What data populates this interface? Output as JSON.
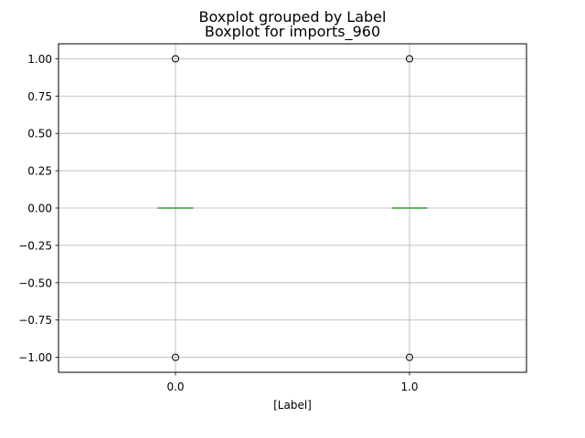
{
  "chart_data": {
    "type": "boxplot",
    "suptitle": "Boxplot grouped by Label",
    "title": "Boxplot for imports_960",
    "xlabel": "[Label]",
    "ylabel": "",
    "categories": [
      "0.0",
      "1.0"
    ],
    "ylim": [
      -1.1,
      1.1
    ],
    "yticks": [
      1.0,
      0.75,
      0.5,
      0.25,
      0.0,
      -0.25,
      -0.5,
      -0.75,
      -1.0
    ],
    "ytick_labels": [
      "1.00",
      "0.75",
      "0.50",
      "0.25",
      "0.00",
      "−0.25",
      "−0.50",
      "−0.75",
      "−1.00"
    ],
    "grid": true,
    "boxes": [
      {
        "category": "0.0",
        "q1": 0.0,
        "median": 0.0,
        "q3": 0.0,
        "whisker_low": 0.0,
        "whisker_high": 0.0,
        "outliers": [
          1.0,
          -1.0
        ]
      },
      {
        "category": "1.0",
        "q1": 0.0,
        "median": 0.0,
        "q3": 0.0,
        "whisker_low": 0.0,
        "whisker_high": 0.0,
        "outliers": [
          1.0,
          -1.0
        ]
      }
    ],
    "colors": {
      "box": "#1f77b4",
      "median": "#2ca02c",
      "grid": "#b0b0b0",
      "outlier_edge": "#000000"
    }
  }
}
